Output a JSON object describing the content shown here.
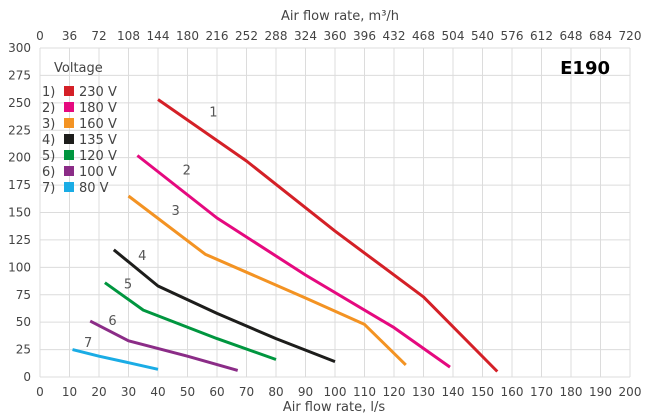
{
  "chart_data": {
    "type": "line",
    "title": "E190",
    "xlabel": "Air flow rate, l/s",
    "x2label": "Air flow rate, m³/h",
    "xlim": [
      0,
      200
    ],
    "ylim": [
      0,
      300
    ],
    "x_ticks": [
      0,
      10,
      20,
      30,
      40,
      50,
      60,
      70,
      80,
      90,
      100,
      110,
      120,
      130,
      140,
      150,
      160,
      170,
      180,
      190,
      200
    ],
    "x2_ticks": [
      0,
      36,
      72,
      108,
      144,
      180,
      216,
      252,
      288,
      324,
      360,
      396,
      432,
      468,
      504,
      540,
      576,
      612,
      648,
      684,
      720
    ],
    "y_ticks": [
      0,
      25,
      50,
      75,
      100,
      125,
      150,
      175,
      200,
      225,
      250,
      275,
      300
    ],
    "grid": true,
    "legend": {
      "title": "Voltage",
      "position": "top-left",
      "entries": [
        {
          "num": "1)",
          "label": "230 V",
          "color": "#d42027"
        },
        {
          "num": "2)",
          "label": "180 V",
          "color": "#e5097f"
        },
        {
          "num": "3)",
          "label": "160 V",
          "color": "#f39323"
        },
        {
          "num": "4)",
          "label": "135 V",
          "color": "#1d1d1b"
        },
        {
          "num": "5)",
          "label": "120 V",
          "color": "#00963f"
        },
        {
          "num": "6)",
          "label": "100 V",
          "color": "#8b2c87"
        },
        {
          "num": "7)",
          "label": "80 V",
          "color": "#1aace5"
        }
      ]
    },
    "series": [
      {
        "name": "1",
        "color": "#d42027",
        "points": [
          [
            40,
            253
          ],
          [
            70,
            197
          ],
          [
            100,
            133
          ],
          [
            130,
            73
          ],
          [
            155,
            5
          ]
        ]
      },
      {
        "name": "2",
        "color": "#e5097f",
        "points": [
          [
            33,
            202
          ],
          [
            60,
            145
          ],
          [
            90,
            93
          ],
          [
            120,
            45
          ],
          [
            139,
            9
          ]
        ]
      },
      {
        "name": "3",
        "color": "#f39323",
        "points": [
          [
            30,
            165
          ],
          [
            56,
            112
          ],
          [
            90,
            72
          ],
          [
            110,
            48
          ],
          [
            124,
            11
          ]
        ]
      },
      {
        "name": "4",
        "color": "#1d1d1b",
        "points": [
          [
            25,
            116
          ],
          [
            40,
            83
          ],
          [
            60,
            58
          ],
          [
            80,
            35
          ],
          [
            100,
            14
          ]
        ]
      },
      {
        "name": "5",
        "color": "#00963f",
        "points": [
          [
            22,
            86
          ],
          [
            35,
            61
          ],
          [
            60,
            35
          ],
          [
            80,
            16
          ]
        ]
      },
      {
        "name": "6",
        "color": "#8b2c87",
        "points": [
          [
            17,
            51
          ],
          [
            30,
            33
          ],
          [
            50,
            19
          ],
          [
            67,
            6
          ]
        ]
      },
      {
        "name": "7",
        "color": "#1aace5",
        "points": [
          [
            11,
            25
          ],
          [
            20,
            19
          ],
          [
            30,
            13
          ],
          [
            40,
            7
          ]
        ]
      }
    ]
  }
}
